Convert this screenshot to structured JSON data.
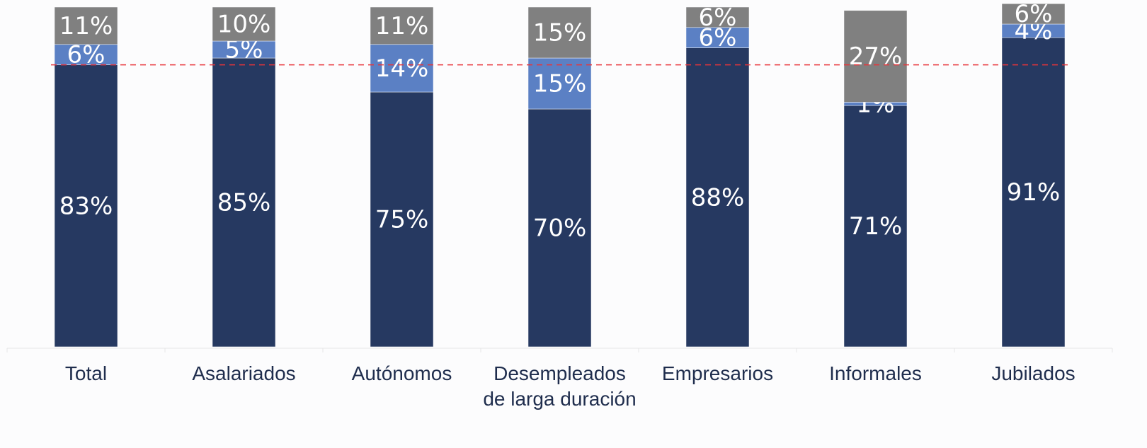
{
  "chart_data": {
    "type": "stacked_bar",
    "categories": [
      "Total",
      "Asalariados",
      "Autónomos",
      "Desempleados de larga duración",
      "Empresarios",
      "Informales",
      "Jubilados"
    ],
    "series": [
      {
        "color": "#263961",
        "values": [
          83,
          85,
          75,
          70,
          88,
          71,
          91
        ],
        "value_labels": [
          "83%",
          "85%",
          "75%",
          "70%",
          "88%",
          "71%",
          "91%"
        ]
      },
      {
        "color": "#5b80c4",
        "values": [
          6,
          5,
          14,
          15,
          6,
          1,
          4
        ],
        "value_labels": [
          "6%",
          "5%",
          "14%",
          "15%",
          "6%",
          "1%",
          "4%"
        ]
      },
      {
        "color": "#808080",
        "values": [
          11,
          10,
          11,
          15,
          6,
          27,
          6
        ],
        "value_labels": [
          "11%",
          "10%",
          "11%",
          "15%",
          "6%",
          "27%",
          "6%"
        ]
      }
    ],
    "ylim": [
      0,
      100
    ],
    "reference_line": {
      "value": 83,
      "color": "#e8343a"
    }
  }
}
